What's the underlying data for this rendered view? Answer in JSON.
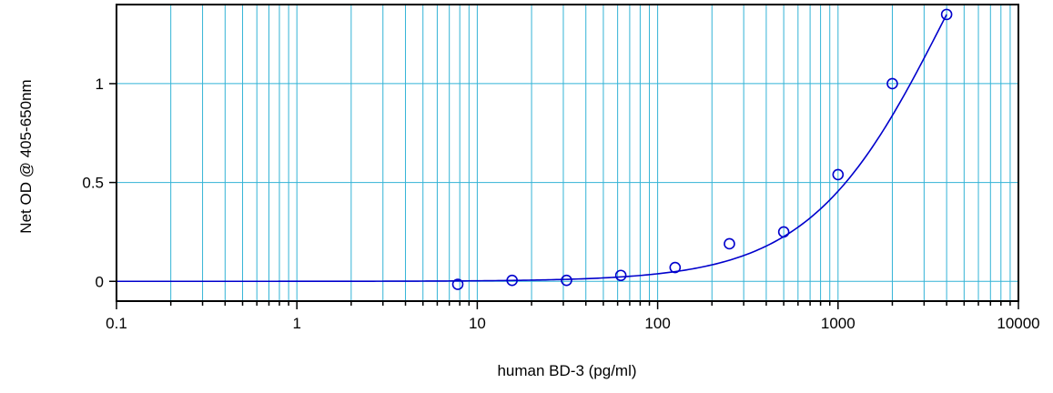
{
  "chart_data": {
    "type": "scatter",
    "title": "",
    "xlabel": "human BD-3 (pg/ml)",
    "ylabel": "Net OD @ 405-650nm",
    "xscale": "log",
    "xlim": [
      0.1,
      10000
    ],
    "ylim": [
      -0.1,
      1.4
    ],
    "x_ticks": [
      0.1,
      1,
      10,
      100,
      1000,
      10000
    ],
    "x_tick_labels": [
      "0.1",
      "1",
      "10",
      "100",
      "1000",
      "10000"
    ],
    "y_ticks": [
      0,
      0.5,
      1
    ],
    "y_tick_labels": [
      "0",
      "0.5",
      "1"
    ],
    "grid": true,
    "legend": "none",
    "series": [
      {
        "marker": "open-circle",
        "x": [
          7.8,
          15.6,
          31.25,
          62.5,
          125,
          250,
          500,
          1000,
          2000,
          4000
        ],
        "y": [
          -0.015,
          0.005,
          0.005,
          0.03,
          0.07,
          0.19,
          0.25,
          0.54,
          1.0,
          1.35
        ]
      }
    ],
    "fit_curve": {
      "type": "4PL",
      "a": 0.0,
      "b": 1.15,
      "c": 4000,
      "d": 2.7,
      "x_start": 0.1,
      "x_end": 4000
    },
    "colors": {
      "data": "#0000cc",
      "grid": "#33b3d6",
      "axis": "#000000"
    }
  }
}
